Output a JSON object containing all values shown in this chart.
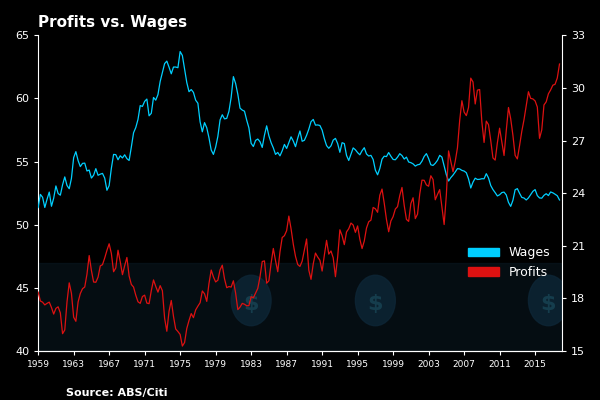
{
  "title": "Profits vs. Wages",
  "source": "Source: ABS/Citi",
  "background_color": "#000000",
  "axes_color": "#ffffff",
  "left_ylim": [
    40,
    65
  ],
  "right_ylim": [
    15,
    33
  ],
  "left_yticks": [
    40,
    45,
    50,
    55,
    60,
    65
  ],
  "right_yticks": [
    15,
    18,
    21,
    24,
    27,
    30,
    33
  ],
  "xtick_labels": [
    "1959",
    "1963",
    "1967",
    "1971",
    "1975",
    "1979",
    "1983",
    "1987",
    "1991",
    "1995",
    "1999",
    "2003",
    "2007",
    "2011",
    "2015"
  ],
  "wages_color": "#00cfff",
  "profits_color": "#dd1111",
  "legend_wages": "Wages",
  "legend_profits": "Profits"
}
